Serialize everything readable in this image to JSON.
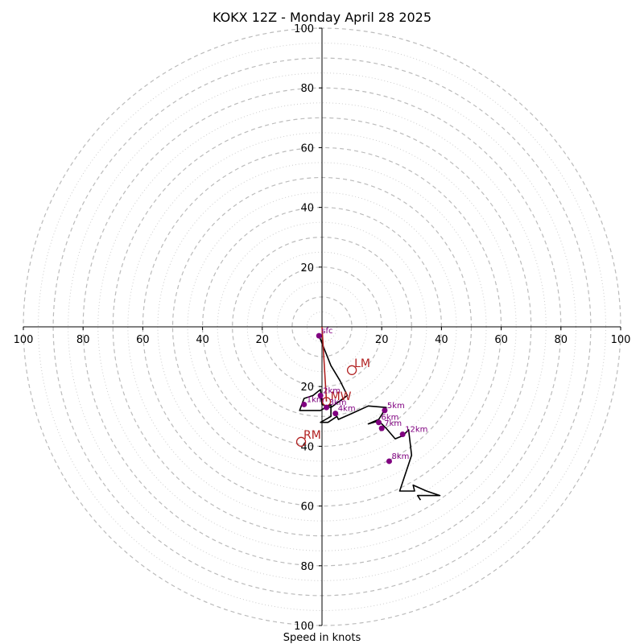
{
  "chart_data": {
    "type": "line",
    "title": "KOKX 12Z - Monday April 28 2025",
    "xlabel": "Speed in knots",
    "xlim": [
      -100,
      100
    ],
    "ylim": [
      -100,
      100
    ],
    "grid": true,
    "rings_major": [
      10,
      20,
      30,
      40,
      50,
      60,
      70,
      80,
      90,
      100
    ],
    "rings_minor": [
      5,
      15,
      25,
      35,
      45,
      55,
      65,
      75,
      85,
      95
    ],
    "x_ticks": [
      {
        "value": -100,
        "label": "100"
      },
      {
        "value": -80,
        "label": "80"
      },
      {
        "value": -60,
        "label": "60"
      },
      {
        "value": -40,
        "label": "40"
      },
      {
        "value": -20,
        "label": "20"
      },
      {
        "value": 20,
        "label": "20"
      },
      {
        "value": 40,
        "label": "40"
      },
      {
        "value": 60,
        "label": "60"
      },
      {
        "value": 80,
        "label": "80"
      },
      {
        "value": 100,
        "label": "100"
      }
    ],
    "y_ticks": [
      {
        "value": 100,
        "label": "100"
      },
      {
        "value": 80,
        "label": "80"
      },
      {
        "value": 60,
        "label": "60"
      },
      {
        "value": 40,
        "label": "40"
      },
      {
        "value": 20,
        "label": "20"
      },
      {
        "value": -20,
        "label": "20"
      },
      {
        "value": -40,
        "label": "40"
      },
      {
        "value": -60,
        "label": "60"
      },
      {
        "value": -80,
        "label": "80"
      },
      {
        "value": -100,
        "label": "100"
      }
    ],
    "hodograph": [
      {
        "u": -1,
        "v": -3
      },
      {
        "u": 1,
        "v": -8
      },
      {
        "u": 3,
        "v": -13
      },
      {
        "u": 6,
        "v": -18
      },
      {
        "u": 8.5,
        "v": -23
      },
      {
        "u": 3,
        "v": -27
      },
      {
        "u": 0,
        "v": -26
      },
      {
        "u": -0.5,
        "v": -21
      },
      {
        "u": -3,
        "v": -23
      },
      {
        "u": -6,
        "v": -24
      },
      {
        "u": -7.5,
        "v": -28
      },
      {
        "u": -5,
        "v": -28
      },
      {
        "u": -0.5,
        "v": -28
      },
      {
        "u": 3,
        "v": -26
      },
      {
        "u": 3,
        "v": -30
      },
      {
        "u": -0.5,
        "v": -32
      },
      {
        "u": 2,
        "v": -32
      },
      {
        "u": 5,
        "v": -30
      },
      {
        "u": 5.5,
        "v": -31
      },
      {
        "u": 10,
        "v": -29
      },
      {
        "u": 15.5,
        "v": -26.5
      },
      {
        "u": 21.5,
        "v": -27
      },
      {
        "u": 19,
        "v": -31
      },
      {
        "u": 15.5,
        "v": -32.5
      },
      {
        "u": 19,
        "v": -31.5
      },
      {
        "u": 21.5,
        "v": -34
      },
      {
        "u": 24.5,
        "v": -37.5
      },
      {
        "u": 27,
        "v": -36.5
      },
      {
        "u": 29,
        "v": -34.5
      },
      {
        "u": 30,
        "v": -43
      },
      {
        "u": 26,
        "v": -55
      },
      {
        "u": 31,
        "v": -55
      },
      {
        "u": 30.5,
        "v": -53
      },
      {
        "u": 35,
        "v": -55
      },
      {
        "u": 39.5,
        "v": -56.5
      },
      {
        "u": 32,
        "v": -56.5
      },
      {
        "u": 33,
        "v": -58
      }
    ],
    "height_markers": [
      {
        "label": "sfc",
        "u": -1,
        "v": -3
      },
      {
        "label": "1km",
        "u": -6,
        "v": -26
      },
      {
        "label": "2km",
        "u": -0.5,
        "v": -23
      },
      {
        "label": "3km",
        "u": 1.5,
        "v": -27
      },
      {
        "label": "4km",
        "u": 4.5,
        "v": -29
      },
      {
        "label": "5km",
        "u": 21,
        "v": -28
      },
      {
        "label": "6km",
        "u": 19,
        "v": -32
      },
      {
        "label": "7km",
        "u": 20,
        "v": -34
      },
      {
        "label": "8km",
        "u": 22.5,
        "v": -45
      },
      {
        "label": "12km",
        "u": 27,
        "v": -36
      }
    ],
    "motion_markers": [
      {
        "label": "LM",
        "u": 10,
        "v": -14.5
      },
      {
        "label": "MW",
        "u": 1.5,
        "v": -25
      },
      {
        "label": "RM",
        "u": -7,
        "v": -38.5
      }
    ],
    "mean_wind_vector": {
      "from": {
        "u": 0,
        "v": 0
      },
      "to": {
        "u": 1.5,
        "v": -25
      }
    },
    "colors": {
      "hodograph": "#000000",
      "height_markers": "#800080",
      "motion": "#b22222",
      "grid": "#bbbbbb",
      "axes": "#000000"
    }
  }
}
